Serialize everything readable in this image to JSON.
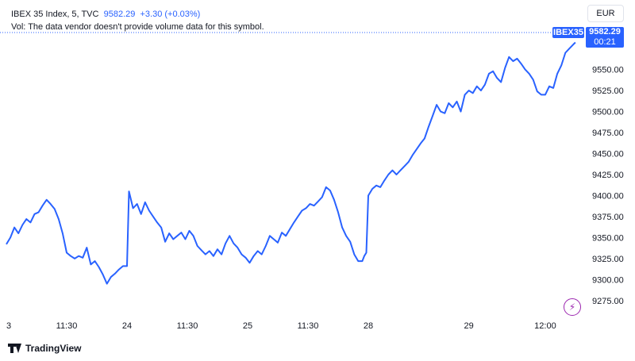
{
  "legend": {
    "symbol": "IBEX 35 Index, 5, TVC",
    "last": "9582.29",
    "change": "+3.30 (+0.03%)",
    "volume_note": "Vol: The data vendor doesn't provide volume data for this symbol."
  },
  "currency_label": "EUR",
  "price_badge": {
    "symbol": "IBEX35",
    "price": "9582.29",
    "countdown": "00:21"
  },
  "branding": {
    "text": "TradingView"
  },
  "colors": {
    "line": "#2962ff",
    "axis_text": "#131722",
    "grid": "#f0f3fa",
    "flash": "#9c27b0"
  },
  "icons": {
    "flash": "lightning-icon",
    "logo": "tradingview-logo-icon"
  },
  "chart_data": {
    "type": "line",
    "title": "",
    "xlabel": "",
    "ylabel": "",
    "ylim": [
      9255,
      9595
    ],
    "y_ticks": [
      "9550.00",
      "9525.00",
      "9500.00",
      "9475.00",
      "9450.00",
      "9425.00",
      "9400.00",
      "9375.00",
      "9350.00",
      "9325.00",
      "9300.00",
      "9275.00"
    ],
    "x_ticks": [
      "3",
      "11:30",
      "24",
      "11:30",
      "25",
      "11:30",
      "28",
      "29",
      "12:00"
    ],
    "x_tick_positions": [
      0,
      30,
      60,
      90,
      120,
      150,
      180,
      230,
      268
    ],
    "x_range": [
      0,
      285
    ],
    "series": [
      {
        "name": "",
        "points": [
          [
            0,
            9342
          ],
          [
            2,
            9350
          ],
          [
            4,
            9362
          ],
          [
            6,
            9355
          ],
          [
            8,
            9365
          ],
          [
            10,
            9372
          ],
          [
            12,
            9368
          ],
          [
            14,
            9378
          ],
          [
            16,
            9380
          ],
          [
            18,
            9388
          ],
          [
            20,
            9395
          ],
          [
            22,
            9390
          ],
          [
            24,
            9384
          ],
          [
            26,
            9372
          ],
          [
            28,
            9355
          ],
          [
            30,
            9332
          ],
          [
            32,
            9328
          ],
          [
            34,
            9325
          ],
          [
            36,
            9328
          ],
          [
            38,
            9326
          ],
          [
            40,
            9338
          ],
          [
            42,
            9318
          ],
          [
            44,
            9322
          ],
          [
            46,
            9315
          ],
          [
            48,
            9306
          ],
          [
            50,
            9295
          ],
          [
            52,
            9303
          ],
          [
            54,
            9307
          ],
          [
            56,
            9312
          ],
          [
            58,
            9316
          ],
          [
            60,
            9316
          ],
          [
            61,
            9405
          ],
          [
            63,
            9385
          ],
          [
            65,
            9390
          ],
          [
            67,
            9378
          ],
          [
            69,
            9392
          ],
          [
            71,
            9382
          ],
          [
            73,
            9375
          ],
          [
            75,
            9368
          ],
          [
            77,
            9362
          ],
          [
            79,
            9345
          ],
          [
            81,
            9355
          ],
          [
            83,
            9348
          ],
          [
            85,
            9352
          ],
          [
            87,
            9356
          ],
          [
            89,
            9348
          ],
          [
            91,
            9358
          ],
          [
            93,
            9352
          ],
          [
            95,
            9340
          ],
          [
            97,
            9335
          ],
          [
            99,
            9330
          ],
          [
            101,
            9334
          ],
          [
            103,
            9328
          ],
          [
            105,
            9336
          ],
          [
            107,
            9330
          ],
          [
            109,
            9343
          ],
          [
            111,
            9352
          ],
          [
            113,
            9343
          ],
          [
            115,
            9338
          ],
          [
            117,
            9330
          ],
          [
            119,
            9326
          ],
          [
            121,
            9320
          ],
          [
            123,
            9328
          ],
          [
            125,
            9334
          ],
          [
            127,
            9330
          ],
          [
            129,
            9340
          ],
          [
            131,
            9352
          ],
          [
            133,
            9348
          ],
          [
            135,
            9344
          ],
          [
            137,
            9356
          ],
          [
            139,
            9352
          ],
          [
            141,
            9360
          ],
          [
            143,
            9368
          ],
          [
            145,
            9375
          ],
          [
            147,
            9382
          ],
          [
            149,
            9385
          ],
          [
            151,
            9390
          ],
          [
            153,
            9388
          ],
          [
            155,
            9393
          ],
          [
            157,
            9398
          ],
          [
            159,
            9410
          ],
          [
            161,
            9406
          ],
          [
            163,
            9395
          ],
          [
            165,
            9380
          ],
          [
            167,
            9362
          ],
          [
            169,
            9352
          ],
          [
            171,
            9345
          ],
          [
            173,
            9330
          ],
          [
            175,
            9322
          ],
          [
            177,
            9322
          ],
          [
            178,
            9328
          ],
          [
            179,
            9332
          ],
          [
            180,
            9400
          ],
          [
            182,
            9408
          ],
          [
            184,
            9412
          ],
          [
            186,
            9410
          ],
          [
            188,
            9418
          ],
          [
            190,
            9425
          ],
          [
            192,
            9430
          ],
          [
            194,
            9425
          ],
          [
            196,
            9430
          ],
          [
            198,
            9435
          ],
          [
            200,
            9440
          ],
          [
            202,
            9448
          ],
          [
            204,
            9455
          ],
          [
            206,
            9462
          ],
          [
            208,
            9468
          ],
          [
            210,
            9482
          ],
          [
            212,
            9495
          ],
          [
            214,
            9508
          ],
          [
            216,
            9500
          ],
          [
            218,
            9498
          ],
          [
            220,
            9510
          ],
          [
            222,
            9505
          ],
          [
            224,
            9512
          ],
          [
            226,
            9500
          ],
          [
            228,
            9520
          ],
          [
            230,
            9525
          ],
          [
            232,
            9522
          ],
          [
            234,
            9530
          ],
          [
            236,
            9525
          ],
          [
            238,
            9532
          ],
          [
            240,
            9545
          ],
          [
            242,
            9548
          ],
          [
            244,
            9540
          ],
          [
            246,
            9535
          ],
          [
            248,
            9552
          ],
          [
            250,
            9565
          ],
          [
            252,
            9560
          ],
          [
            254,
            9563
          ],
          [
            256,
            9557
          ],
          [
            258,
            9550
          ],
          [
            260,
            9545
          ],
          [
            262,
            9538
          ],
          [
            264,
            9524
          ],
          [
            266,
            9520
          ],
          [
            268,
            9520
          ],
          [
            270,
            9530
          ],
          [
            272,
            9528
          ],
          [
            274,
            9545
          ],
          [
            276,
            9555
          ],
          [
            278,
            9570
          ],
          [
            280,
            9575
          ],
          [
            282,
            9580
          ],
          [
            283,
            9582.29
          ]
        ]
      }
    ],
    "grid": false,
    "legend": "top-left"
  }
}
